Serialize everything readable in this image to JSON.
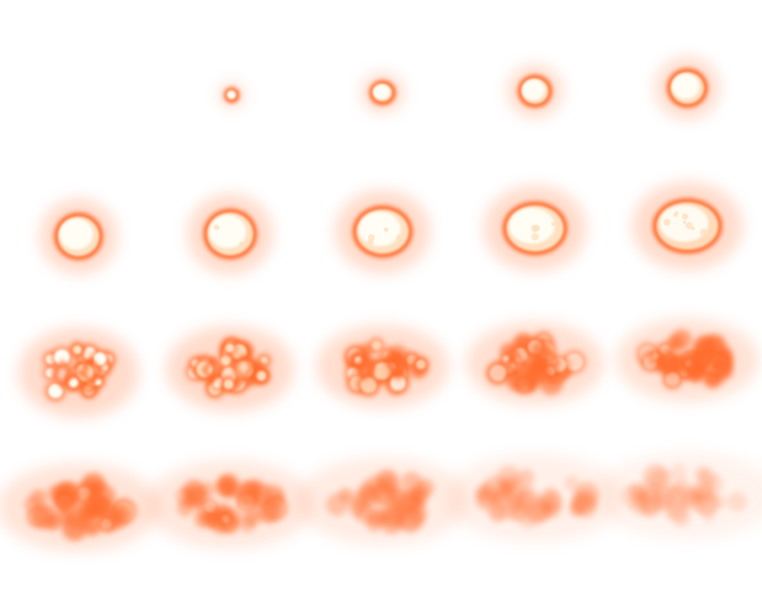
{
  "sprite_sheet": {
    "subject": "explosion-burst-animation",
    "background_color": "#ffffff",
    "palette": {
      "core": "#fffdf4",
      "warm": "#ffe1c2",
      "rim": "#ff6d2e",
      "glow": "#ff8a55"
    },
    "frame_count": 20,
    "columns": 5,
    "rows": 4,
    "first_frame_empty": true
  }
}
